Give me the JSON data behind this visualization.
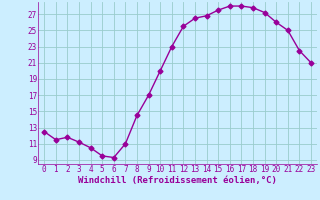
{
  "x": [
    0,
    1,
    2,
    3,
    4,
    5,
    6,
    7,
    8,
    9,
    10,
    11,
    12,
    13,
    14,
    15,
    16,
    17,
    18,
    19,
    20,
    21,
    22,
    23
  ],
  "y": [
    12.5,
    11.5,
    11.8,
    11.2,
    10.5,
    9.5,
    9.3,
    11.0,
    14.5,
    17.0,
    20.0,
    23.0,
    25.5,
    26.5,
    26.8,
    27.5,
    28.0,
    28.0,
    27.8,
    27.2,
    26.0,
    25.0,
    22.5,
    21.0
  ],
  "line_color": "#990099",
  "marker": "D",
  "markersize": 2.5,
  "linewidth": 1.0,
  "bg_color": "#cceeff",
  "grid_color": "#99cccc",
  "xlabel": "Windchill (Refroidissement éolien,°C)",
  "xlim": [
    -0.5,
    23.5
  ],
  "ylim": [
    8.5,
    28.5
  ],
  "xticks": [
    0,
    1,
    2,
    3,
    4,
    5,
    6,
    7,
    8,
    9,
    10,
    11,
    12,
    13,
    14,
    15,
    16,
    17,
    18,
    19,
    20,
    21,
    22,
    23
  ],
  "yticks": [
    9,
    11,
    13,
    15,
    17,
    19,
    21,
    23,
    25,
    27
  ],
  "tick_fontsize": 5.5,
  "xlabel_fontsize": 6.5
}
